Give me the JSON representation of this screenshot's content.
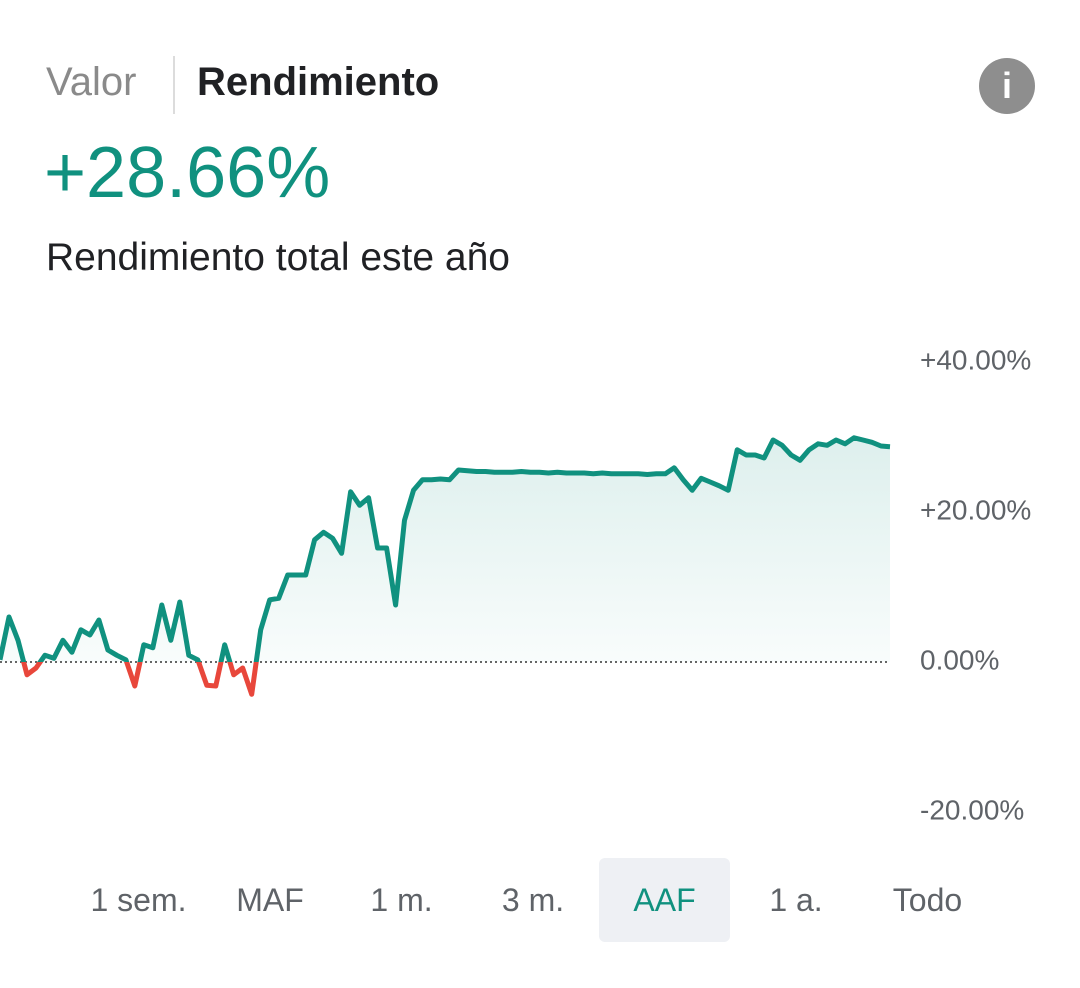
{
  "header": {
    "tabs": [
      "Valor",
      "Rendimiento"
    ]
  },
  "summary": {
    "value": "+28.66%",
    "caption": "Rendimiento total este año"
  },
  "chart_data": {
    "type": "line",
    "categories": [
      null,
      null,
      null,
      null,
      null,
      null,
      null,
      null,
      null,
      null,
      null,
      null,
      null,
      null,
      null,
      null,
      null,
      null,
      null,
      null,
      null,
      null,
      null,
      null,
      null,
      null,
      null,
      null,
      null,
      null,
      null,
      null,
      null,
      null,
      null,
      null,
      null,
      null,
      null,
      null,
      null,
      null,
      null,
      null,
      null,
      null,
      null,
      null,
      null,
      null,
      null,
      null,
      null,
      null,
      null,
      null,
      null,
      null,
      null,
      null,
      null,
      null,
      null,
      null,
      null,
      null,
      null,
      null,
      null,
      null,
      null,
      null,
      null,
      null,
      null,
      null,
      null,
      null,
      null,
      null,
      null,
      null,
      null,
      null,
      null,
      null,
      null,
      null,
      null,
      null,
      null,
      null,
      null,
      null,
      null,
      null,
      null,
      null,
      null,
      null
    ],
    "values": [
      0.3,
      6.0,
      2.9,
      -1.7,
      -0.8,
      0.9,
      0.5,
      2.9,
      1.3,
      4.3,
      3.6,
      5.6,
      1.6,
      0.9,
      0.3,
      -3.2,
      2.3,
      1.9,
      7.6,
      2.9,
      8.0,
      0.9,
      0.3,
      -3.1,
      -3.2,
      2.3,
      -1.7,
      -0.8,
      -4.3,
      4.3,
      8.3,
      8.5,
      11.6,
      11.6,
      11.6,
      16.3,
      17.3,
      16.5,
      14.5,
      22.7,
      20.9,
      21.9,
      15.2,
      15.2,
      7.6,
      18.9,
      22.9,
      24.3,
      24.3,
      24.4,
      24.3,
      25.6,
      25.5,
      25.4,
      25.4,
      25.3,
      25.3,
      25.3,
      25.4,
      25.3,
      25.3,
      25.2,
      25.3,
      25.2,
      25.2,
      25.2,
      25.1,
      25.2,
      25.1,
      25.1,
      25.1,
      25.1,
      25.0,
      25.1,
      25.1,
      25.9,
      24.3,
      22.9,
      24.5,
      24.0,
      23.5,
      22.9,
      28.3,
      27.6,
      27.6,
      27.2,
      29.6,
      28.9,
      27.6,
      26.9,
      28.3,
      29.1,
      28.9,
      29.6,
      29.1,
      29.9,
      29.6,
      29.3,
      28.8,
      28.7
    ],
    "color": "#10917f",
    "negative_color": "#e8473b",
    "ylim": [
      -20,
      40
    ],
    "yticks": [
      {
        "value": 40,
        "label": "+40.00%"
      },
      {
        "value": 20,
        "label": "+20.00%"
      },
      {
        "value": 0,
        "label": "0.00%"
      },
      {
        "value": -20,
        "label": "-20.00%"
      }
    ],
    "grid": false,
    "zero_line": true
  },
  "ranges": [
    "1 sem.",
    "MAF",
    "1 m.",
    "3 m.",
    "AAF",
    "1 a.",
    "Todo"
  ]
}
